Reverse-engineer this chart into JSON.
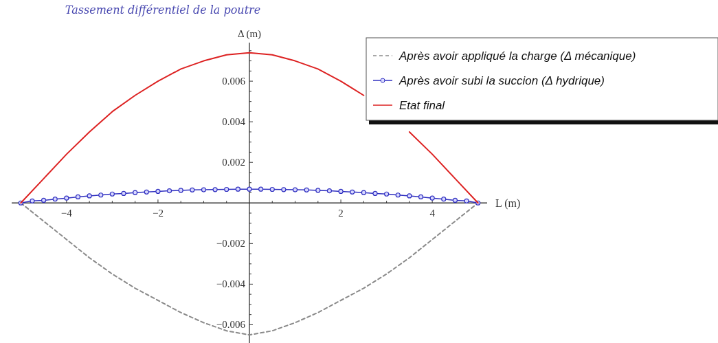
{
  "chart_data": {
    "type": "line",
    "title": "Tassement différentiel de la poutre",
    "xlabel": "L (m)",
    "ylabel": "Δ (m)",
    "xlim": [
      -5.2,
      5.2
    ],
    "ylim": [
      -0.0069,
      0.0079
    ],
    "xticks": [
      -4,
      -2,
      2,
      4,
      {
        "value": -4.5,
        "label": null
      },
      {
        "value": -3.5,
        "label": null
      },
      {
        "value": -3,
        "label": null
      },
      {
        "value": -2.5,
        "label": null
      },
      {
        "value": -1.5,
        "label": null
      },
      {
        "value": -1,
        "label": null
      },
      {
        "value": -0.5,
        "label": null
      },
      {
        "value": 0.5,
        "label": null
      },
      {
        "value": 1,
        "label": null
      },
      {
        "value": 1.5,
        "label": null
      },
      {
        "value": 2.5,
        "label": null
      },
      {
        "value": 3,
        "label": null
      },
      {
        "value": 3.5,
        "label": null
      },
      {
        "value": 4.5,
        "label": null
      }
    ],
    "yticks": [
      -0.006,
      -0.004,
      -0.002,
      0.002,
      0.004,
      0.006,
      {
        "value": -0.0065,
        "label": null
      },
      {
        "value": -0.0055,
        "label": null
      },
      {
        "value": -0.005,
        "label": null
      },
      {
        "value": -0.0045,
        "label": null
      },
      {
        "value": -0.0035,
        "label": null
      },
      {
        "value": -0.003,
        "label": null
      },
      {
        "value": -0.0025,
        "label": null
      },
      {
        "value": -0.0015,
        "label": null
      },
      {
        "value": -0.001,
        "label": null
      },
      {
        "value": -0.0005,
        "label": null
      },
      {
        "value": 0.0005,
        "label": null
      },
      {
        "value": 0.001,
        "label": null
      },
      {
        "value": 0.0015,
        "label": null
      },
      {
        "value": 0.0025,
        "label": null
      },
      {
        "value": 0.003,
        "label": null
      },
      {
        "value": 0.0035,
        "label": null
      },
      {
        "value": 0.0045,
        "label": null
      },
      {
        "value": 0.005,
        "label": null
      },
      {
        "value": 0.0055,
        "label": null
      },
      {
        "value": 0.0065,
        "label": null
      },
      {
        "value": 0.007,
        "label": null
      },
      {
        "value": 0.0075,
        "label": null
      }
    ],
    "grid": false,
    "legend": "top right",
    "series": [
      {
        "name": "Après avoir appliqué la charge (Δ mécanique)",
        "color": "#8a8a8a",
        "line_style": "dashed",
        "marker": "none",
        "x": [
          -5,
          -4.5,
          -4,
          -3.5,
          -3,
          -2.5,
          -2,
          -1.5,
          -1,
          -0.5,
          0,
          0.5,
          1,
          1.5,
          2,
          2.5,
          3,
          3.5,
          4,
          4.5,
          5
        ],
        "values": [
          0,
          -0.0009,
          -0.0018,
          -0.0027,
          -0.0035,
          -0.0042,
          -0.0048,
          -0.0054,
          -0.0059,
          -0.0063,
          -0.0065,
          -0.0063,
          -0.0059,
          -0.0054,
          -0.0048,
          -0.0042,
          -0.0035,
          -0.0027,
          -0.0018,
          -0.0009,
          0
        ]
      },
      {
        "name": "Après avoir subi la succion (Δ hydrique)",
        "color": "#3030c0",
        "line_style": "solid",
        "marker": "circle",
        "x": [
          -5,
          -4.75,
          -4.5,
          -4.25,
          -4,
          -3.75,
          -3.5,
          -3.25,
          -3,
          -2.75,
          -2.5,
          -2.25,
          -2,
          -1.75,
          -1.5,
          -1.25,
          -1,
          -0.75,
          -0.5,
          -0.25,
          0,
          0.25,
          0.5,
          0.75,
          1,
          1.25,
          1.5,
          1.75,
          2,
          2.25,
          2.5,
          2.75,
          3,
          3.25,
          3.5,
          3.75,
          4,
          4.25,
          4.5,
          4.75,
          5
        ],
        "values": [
          0,
          0.0001,
          0.00013,
          0.00019,
          0.00024,
          0.0003,
          0.00035,
          0.00039,
          0.00044,
          0.00047,
          0.00051,
          0.00054,
          0.00057,
          0.0006,
          0.00062,
          0.00064,
          0.00065,
          0.00066,
          0.00067,
          0.00068,
          0.00068,
          0.00068,
          0.00067,
          0.00066,
          0.00065,
          0.00064,
          0.00062,
          0.0006,
          0.00057,
          0.00054,
          0.00051,
          0.00047,
          0.00044,
          0.00039,
          0.00035,
          0.0003,
          0.00024,
          0.00019,
          0.00013,
          0.0001,
          0
        ]
      },
      {
        "name": "Etat final",
        "color": "#dd2222",
        "line_style": "solid",
        "marker": "none",
        "x": [
          -5,
          -4.5,
          -4,
          -3.5,
          -3,
          -2.5,
          -2,
          -1.5,
          -1,
          -0.5,
          0,
          0.5,
          1,
          1.5,
          2,
          2.5,
          3,
          3.5,
          4,
          4.5,
          5
        ],
        "values": [
          0,
          0.0012,
          0.0024,
          0.0035,
          0.0045,
          0.0053,
          0.006,
          0.0066,
          0.007,
          0.0073,
          0.0074,
          0.0073,
          0.007,
          0.0066,
          0.006,
          0.0053,
          null,
          0.0035,
          0.0024,
          0.0012,
          0
        ]
      }
    ]
  }
}
